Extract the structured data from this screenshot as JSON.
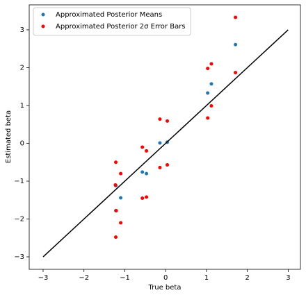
{
  "chart_data": {
    "type": "scatter",
    "xlabel": "True beta",
    "ylabel": "Estimated beta",
    "xlim": [
      -3.34,
      3.3
    ],
    "ylim": [
      -3.33,
      3.66
    ],
    "xticks": [
      {
        "value": -3,
        "label": "−3"
      },
      {
        "value": -2,
        "label": "−2"
      },
      {
        "value": -1,
        "label": "−1"
      },
      0,
      1,
      2,
      3
    ],
    "yticks": [
      {
        "value": -3,
        "label": "−3"
      },
      {
        "value": -2,
        "label": "−2"
      },
      {
        "value": -1,
        "label": "−1"
      },
      0,
      1,
      2,
      3
    ],
    "legend": "upper left",
    "series": [
      {
        "name": "Approximated Posterior Means",
        "color": "#1f77b4",
        "mode": "markers",
        "x": [
          1.71,
          1.12,
          1.03,
          0.04,
          -0.14,
          -0.57,
          -0.47,
          -1.1,
          -1.22,
          -1.22
        ],
        "values": [
          2.61,
          1.57,
          1.33,
          0.03,
          0.01,
          -0.76,
          -0.8,
          -1.44,
          -1.12,
          -1.78
        ]
      },
      {
        "name": "Approximated Posterior 2σ Error Bars",
        "color": "#ff0000",
        "mode": "markers",
        "x": [
          1.71,
          1.71,
          1.12,
          1.12,
          1.03,
          1.03,
          0.04,
          0.04,
          -0.14,
          -0.14,
          -0.57,
          -0.57,
          -0.47,
          -0.47,
          -1.1,
          -1.1,
          -1.22,
          -1.23,
          -1.21,
          -1.22
        ],
        "values": [
          3.33,
          1.87,
          2.1,
          0.99,
          1.98,
          0.67,
          0.59,
          -0.57,
          0.64,
          -0.64,
          -0.1,
          -1.45,
          -0.2,
          -1.42,
          -0.8,
          -2.1,
          -0.5,
          -1.1,
          -1.78,
          -2.48
        ]
      },
      {
        "color": "#000000",
        "mode": "line",
        "x": [
          -3,
          3
        ],
        "values": [
          -3,
          3
        ]
      }
    ]
  }
}
